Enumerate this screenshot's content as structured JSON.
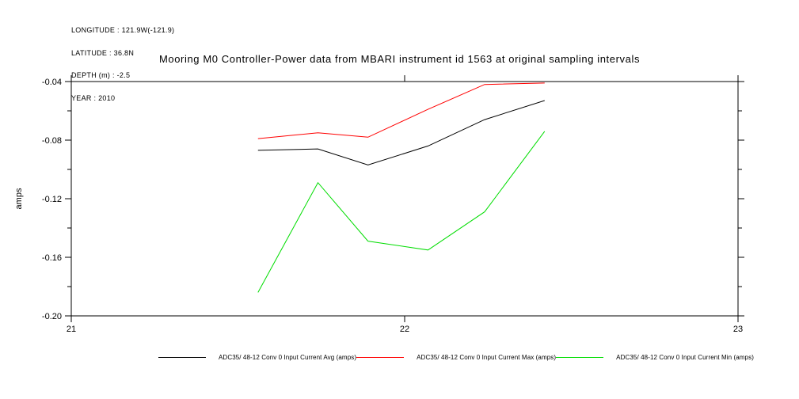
{
  "meta": {
    "lines": [
      "LONGITUDE : 121.9W(-121.9)",
      "LATITUDE : 36.8N",
      "DEPTH (m) : -2.5",
      "YEAR : 2010"
    ]
  },
  "title": "Mooring M0 Controller-Power data from MBARI instrument id 1563 at original sampling intervals",
  "chart_data": {
    "type": "line",
    "title": "Mooring M0 Controller-Power data from MBARI instrument id 1563 at original sampling intervals",
    "xlabel": "",
    "ylabel": "amps",
    "xlim": [
      21,
      23
    ],
    "ylim": [
      -0.2,
      -0.04
    ],
    "x_ticks": [
      21,
      22,
      23
    ],
    "y_ticks_major": [
      -0.04,
      -0.08,
      -0.12,
      -0.16,
      -0.2
    ],
    "y_ticks_minor": [
      -0.06,
      -0.1,
      -0.14,
      -0.18
    ],
    "grid": false,
    "legend_position": "bottom",
    "axis_color": "#000000",
    "x": [
      21.56,
      21.74,
      21.89,
      22.07,
      22.24,
      22.42
    ],
    "series": [
      {
        "id": "avg",
        "name": "ADC35/ 48-12 Conv 0 Input Current Avg (amps)",
        "color": "#000000",
        "values": [
          -0.087,
          -0.086,
          -0.097,
          -0.084,
          -0.066,
          -0.053
        ]
      },
      {
        "id": "max",
        "name": "ADC35/ 48-12 Conv 0 Input Current Max (amps)",
        "color": "#ff0000",
        "values": [
          -0.079,
          -0.075,
          -0.078,
          -0.059,
          -0.042,
          -0.041
        ]
      },
      {
        "id": "min",
        "name": "ADC35/ 48-12 Conv 0 Input Current Min (amps)",
        "color": "#00dd00",
        "values": [
          -0.184,
          -0.109,
          -0.149,
          -0.155,
          -0.129,
          -0.074
        ]
      }
    ]
  }
}
